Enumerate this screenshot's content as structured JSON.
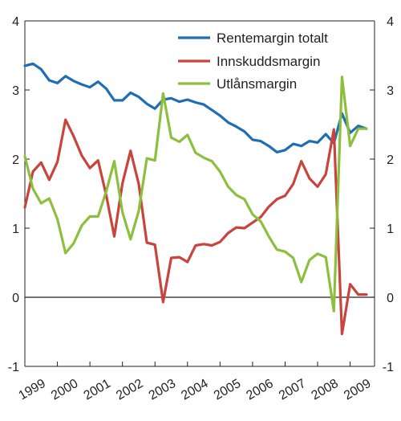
{
  "chart_data": {
    "type": "line",
    "ylim": [
      -1,
      4
    ],
    "y_ticks": [
      "-1",
      "0",
      "1",
      "2",
      "3",
      "4"
    ],
    "right_y_ticks": [
      "-1",
      "0",
      "1",
      "2",
      "3",
      "4"
    ],
    "x_range": [
      1999.0,
      2009.75
    ],
    "x_ticks": [
      "1999",
      "2000",
      "2001",
      "2002",
      "2003",
      "2004",
      "2005",
      "2006",
      "2007",
      "2008",
      "2009"
    ],
    "grid": false,
    "legend_position": "top-right",
    "x": [
      1999.0,
      1999.25,
      1999.5,
      1999.75,
      2000.0,
      2000.25,
      2000.5,
      2000.75,
      2001.0,
      2001.25,
      2001.5,
      2001.75,
      2002.0,
      2002.25,
      2002.5,
      2002.75,
      2003.0,
      2003.25,
      2003.5,
      2003.75,
      2004.0,
      2004.25,
      2004.5,
      2004.75,
      2005.0,
      2005.25,
      2005.5,
      2005.75,
      2006.0,
      2006.25,
      2006.5,
      2006.75,
      2007.0,
      2007.25,
      2007.5,
      2007.75,
      2008.0,
      2008.25,
      2008.5,
      2008.75,
      2009.0,
      2009.25,
      2009.5
    ],
    "series": [
      {
        "name": "Rentemargin totalt",
        "color": "#1f6db5",
        "values": [
          3.35,
          3.38,
          3.3,
          3.14,
          3.1,
          3.2,
          3.13,
          3.08,
          3.04,
          3.12,
          3.02,
          2.85,
          2.85,
          2.96,
          2.9,
          2.8,
          2.73,
          2.86,
          2.88,
          2.83,
          2.86,
          2.82,
          2.79,
          2.71,
          2.63,
          2.53,
          2.47,
          2.4,
          2.28,
          2.26,
          2.19,
          2.1,
          2.13,
          2.22,
          2.19,
          2.26,
          2.24,
          2.36,
          2.23,
          2.66,
          2.38,
          2.48,
          2.44
        ]
      },
      {
        "name": "Innskuddsmargin",
        "color": "#c8443c",
        "values": [
          1.3,
          1.82,
          1.95,
          1.7,
          1.96,
          2.57,
          2.33,
          2.05,
          1.87,
          1.98,
          1.48,
          0.88,
          1.65,
          2.12,
          1.64,
          0.79,
          0.76,
          -0.07,
          0.57,
          0.58,
          0.51,
          0.75,
          0.77,
          0.75,
          0.8,
          0.93,
          1.01,
          1.0,
          1.08,
          1.16,
          1.31,
          1.42,
          1.47,
          1.64,
          1.97,
          1.72,
          1.6,
          1.78,
          2.43,
          -0.53,
          0.19,
          0.04,
          0.04
        ]
      },
      {
        "name": "Utlånsmargin",
        "color": "#8dbf3f",
        "values": [
          2.04,
          1.57,
          1.36,
          1.43,
          1.13,
          0.64,
          0.78,
          1.04,
          1.17,
          1.17,
          1.53,
          1.97,
          1.23,
          0.84,
          1.25,
          2.01,
          1.98,
          2.95,
          2.31,
          2.25,
          2.35,
          2.09,
          2.02,
          1.97,
          1.82,
          1.6,
          1.48,
          1.42,
          1.2,
          1.1,
          0.88,
          0.69,
          0.66,
          0.57,
          0.22,
          0.54,
          0.63,
          0.58,
          -0.2,
          3.19,
          2.19,
          2.44,
          2.44
        ]
      }
    ]
  }
}
